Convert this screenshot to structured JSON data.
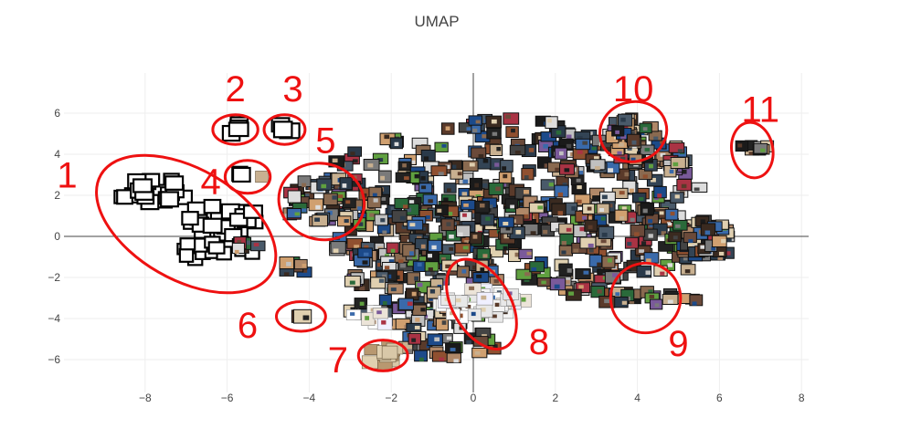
{
  "chart_data": {
    "type": "scatter",
    "title": "UMAP",
    "xlabel": "",
    "ylabel": "",
    "xlim": [
      -9.5,
      8.2
    ],
    "ylim": [
      -7.4,
      7.9
    ],
    "x_ticks": [
      -8,
      -6,
      -4,
      -2,
      0,
      2,
      4,
      6,
      8
    ],
    "y_ticks": [
      -6,
      -4,
      -2,
      0,
      2,
      4,
      6
    ],
    "grid": true,
    "zero_lines": true,
    "marker": "image thumbnails",
    "annotation_color": "#ee1111",
    "clusters": [
      {
        "label": "1",
        "cx": -7.0,
        "cy": 0.6,
        "rx": 2.4,
        "ry": 2.7,
        "rot": 30,
        "label_x": -9.9,
        "label_y": 3.0
      },
      {
        "label": "2",
        "cx": -5.8,
        "cy": 5.2,
        "rx": 0.55,
        "ry": 0.72,
        "rot": 0,
        "label_x": -5.8,
        "label_y": 7.2
      },
      {
        "label": "3",
        "cx": -4.6,
        "cy": 5.2,
        "rx": 0.5,
        "ry": 0.72,
        "rot": 0,
        "label_x": -4.4,
        "label_y": 7.2
      },
      {
        "label": "4",
        "cx": -5.5,
        "cy": 2.9,
        "rx": 0.55,
        "ry": 0.8,
        "rot": 0,
        "label_x": -6.4,
        "label_y": 2.7
      },
      {
        "label": "5",
        "cx": -3.7,
        "cy": 1.7,
        "rx": 1.05,
        "ry": 1.85,
        "rot": 15,
        "label_x": -3.6,
        "label_y": 4.7
      },
      {
        "label": "6",
        "cx": -4.2,
        "cy": -3.9,
        "rx": 0.6,
        "ry": 0.72,
        "rot": 0,
        "label_x": -5.5,
        "label_y": -4.3
      },
      {
        "label": "7",
        "cx": -2.2,
        "cy": -5.8,
        "rx": 0.6,
        "ry": 0.75,
        "rot": 0,
        "label_x": -3.3,
        "label_y": -6.0
      },
      {
        "label": "8",
        "cx": 0.2,
        "cy": -3.3,
        "rx": 1.2,
        "ry": 1.4,
        "rot": 60,
        "label_x": 1.6,
        "label_y": -5.1
      },
      {
        "label": "9",
        "cx": 4.2,
        "cy": -3.0,
        "rx": 0.85,
        "ry": 1.7,
        "rot": 80,
        "label_x": 5.0,
        "label_y": -5.2
      },
      {
        "label": "10",
        "cx": 3.9,
        "cy": 5.1,
        "rx": 0.82,
        "ry": 1.45,
        "rot": -15,
        "label_x": 3.9,
        "label_y": 7.2
      },
      {
        "label": "11",
        "cx": 6.8,
        "cy": 4.2,
        "rx": 0.68,
        "ry": 1.0,
        "rot": 80,
        "label_x": 7.0,
        "label_y": 6.2
      }
    ]
  }
}
